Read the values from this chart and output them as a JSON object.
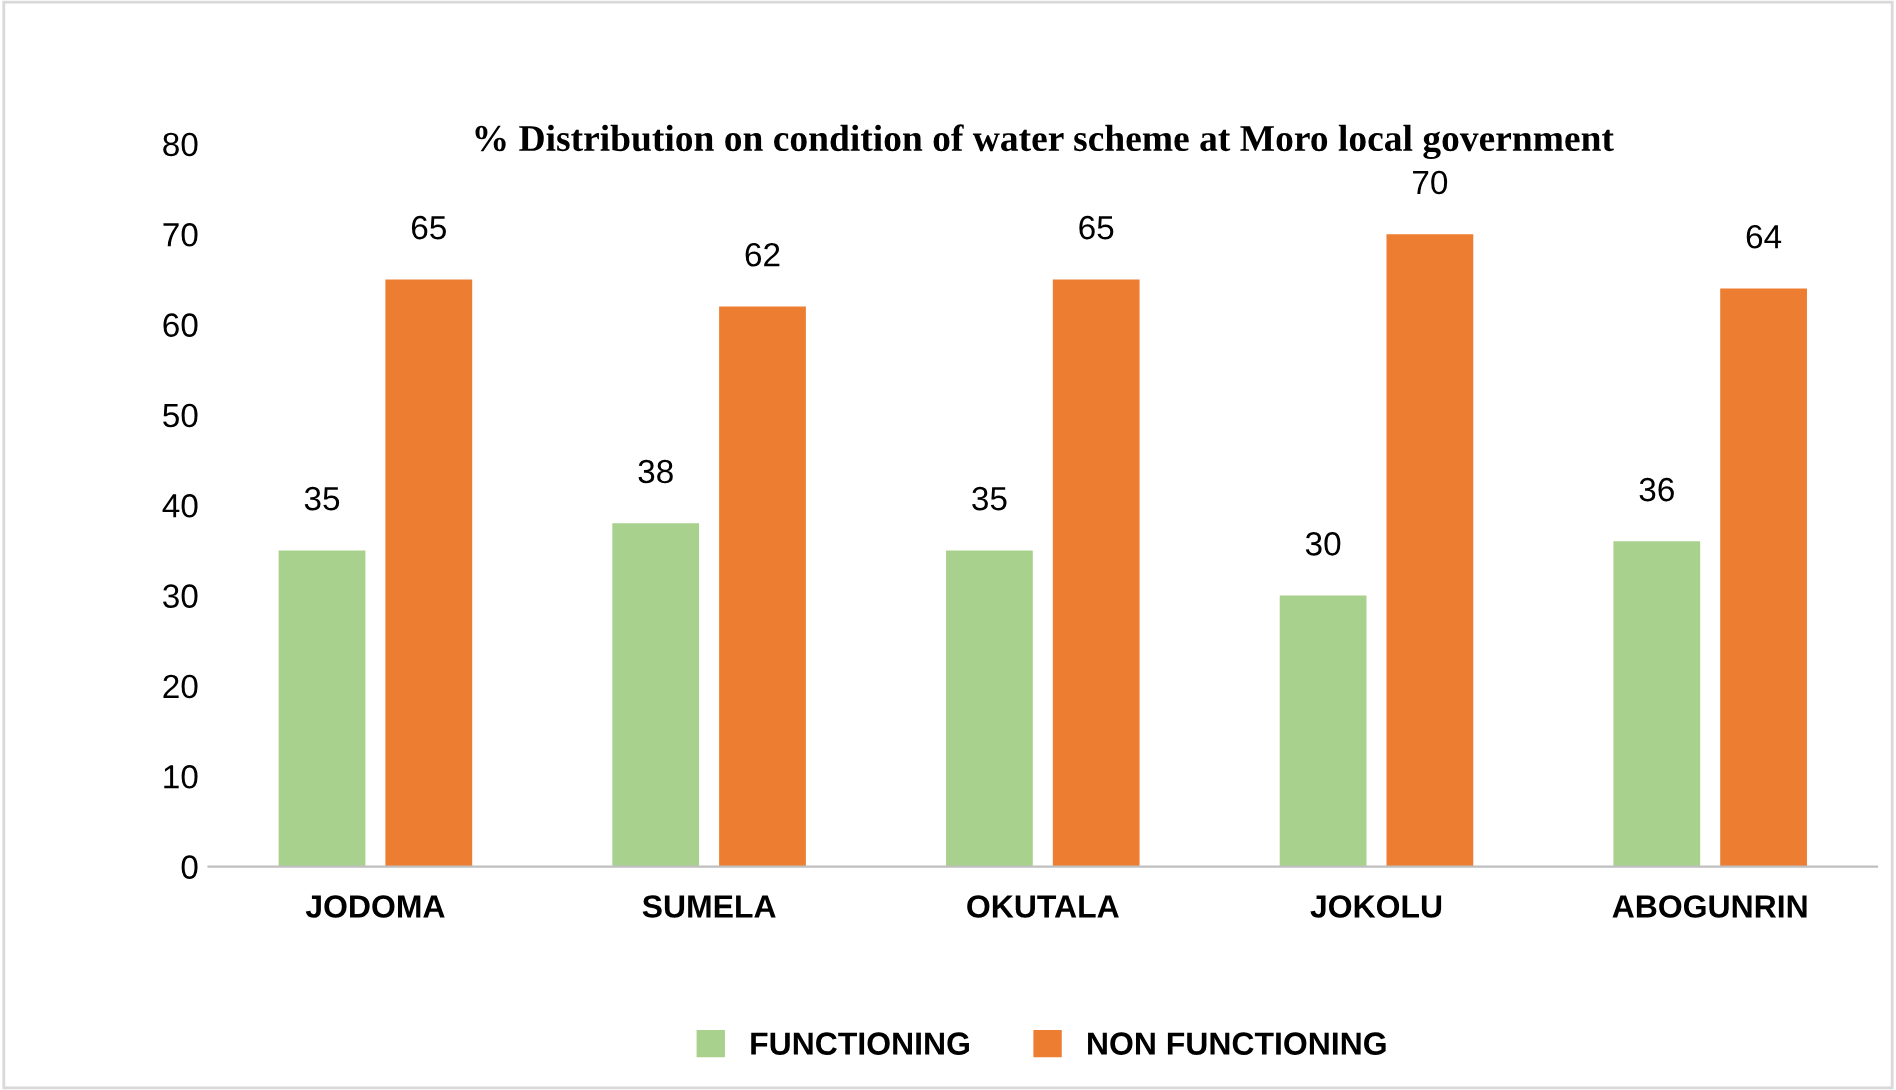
{
  "chart_data": {
    "type": "bar",
    "title": "% Distribution on condition of water scheme at Moro local government",
    "categories": [
      "JODOMA",
      "SUMELA",
      "OKUTALA",
      "JOKOLU",
      "ABOGUNRIN"
    ],
    "series": [
      {
        "name": "FUNCTIONING",
        "color": "#a9d18e",
        "values": [
          35,
          38,
          35,
          30,
          36
        ]
      },
      {
        "name": "NON FUNCTIONING",
        "color": "#ed7d31",
        "values": [
          65,
          62,
          65,
          70,
          64
        ]
      }
    ],
    "ylim": [
      0,
      80
    ],
    "yticks": [
      0,
      10,
      20,
      30,
      40,
      50,
      60,
      70,
      80
    ],
    "grid": false,
    "legend": "bottom",
    "data_labels": true
  }
}
